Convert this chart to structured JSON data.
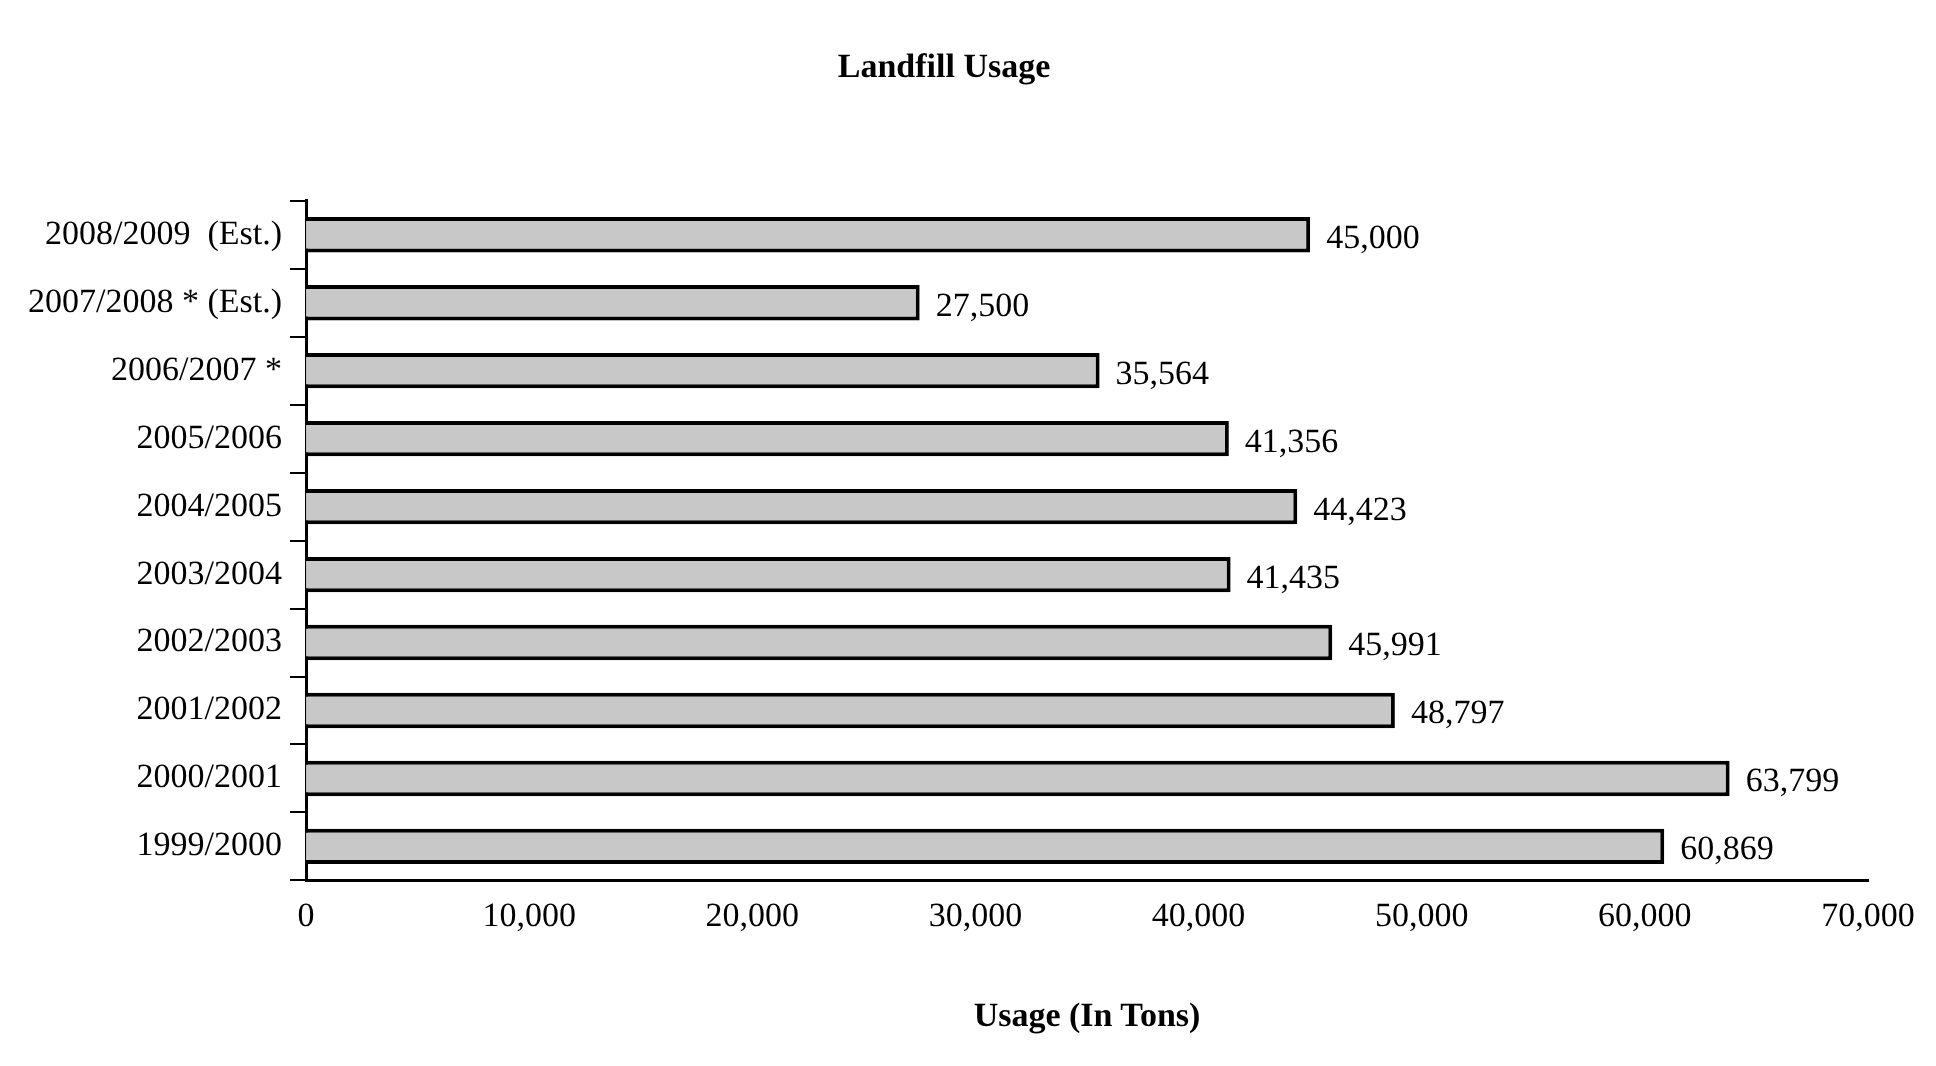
{
  "chart_data": {
    "type": "bar",
    "title": "Landfill Usage",
    "xlabel": "Usage (In Tons)",
    "orientation": "horizontal",
    "categories": [
      "2008/2009  (Est.)",
      "2007/2008 * (Est.)",
      "2006/2007 *",
      "2005/2006",
      "2004/2005",
      "2003/2004",
      "2002/2003",
      "2001/2002",
      "2000/2001",
      "1999/2000"
    ],
    "values": [
      45000,
      27500,
      35564,
      41356,
      44423,
      41435,
      45991,
      48797,
      63799,
      60869
    ],
    "color": "#c8c8c8",
    "xlim": [
      0,
      70000
    ],
    "xticks": [
      0,
      {
        "value": 10000,
        "label": "10,000"
      },
      {
        "value": 20000,
        "label": "20,000"
      },
      {
        "value": 30000,
        "label": "30,000"
      },
      {
        "value": 40000,
        "label": "40,000"
      },
      {
        "value": 50000,
        "label": "50,000"
      },
      {
        "value": 60000,
        "label": "60,000"
      },
      {
        "value": 70000,
        "label": "70,000"
      }
    ],
    "value_labels": [
      "45,000",
      "27,500",
      "35,564",
      "41,356",
      "44,423",
      "41,435",
      "45,991",
      "48,797",
      "63,799",
      "60,869"
    ]
  }
}
